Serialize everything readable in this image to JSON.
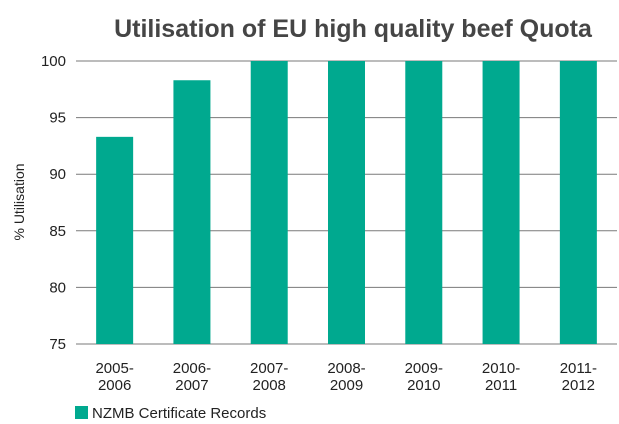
{
  "chart_data": {
    "type": "bar",
    "title": "Utilisation of EU high quality beef Quota",
    "xlabel": "",
    "ylabel": "% Utilisation",
    "categories": [
      [
        "2005-",
        "2006"
      ],
      [
        "2006-",
        "2007"
      ],
      [
        "2007-",
        "2008"
      ],
      [
        "2008-",
        "2009"
      ],
      [
        "2009-",
        "2010"
      ],
      [
        "2010-",
        "2011"
      ],
      [
        "2011-",
        "2012"
      ]
    ],
    "series": [
      {
        "name": "NZMB Certificate Records",
        "values": [
          93.3,
          98.3,
          100,
          100,
          100,
          100,
          100
        ],
        "color": "#00a98f"
      }
    ],
    "ylim": [
      75,
      100
    ],
    "yticks": [
      75,
      80,
      85,
      90,
      95,
      100
    ],
    "grid": true,
    "legend_position": "bottom-left"
  }
}
